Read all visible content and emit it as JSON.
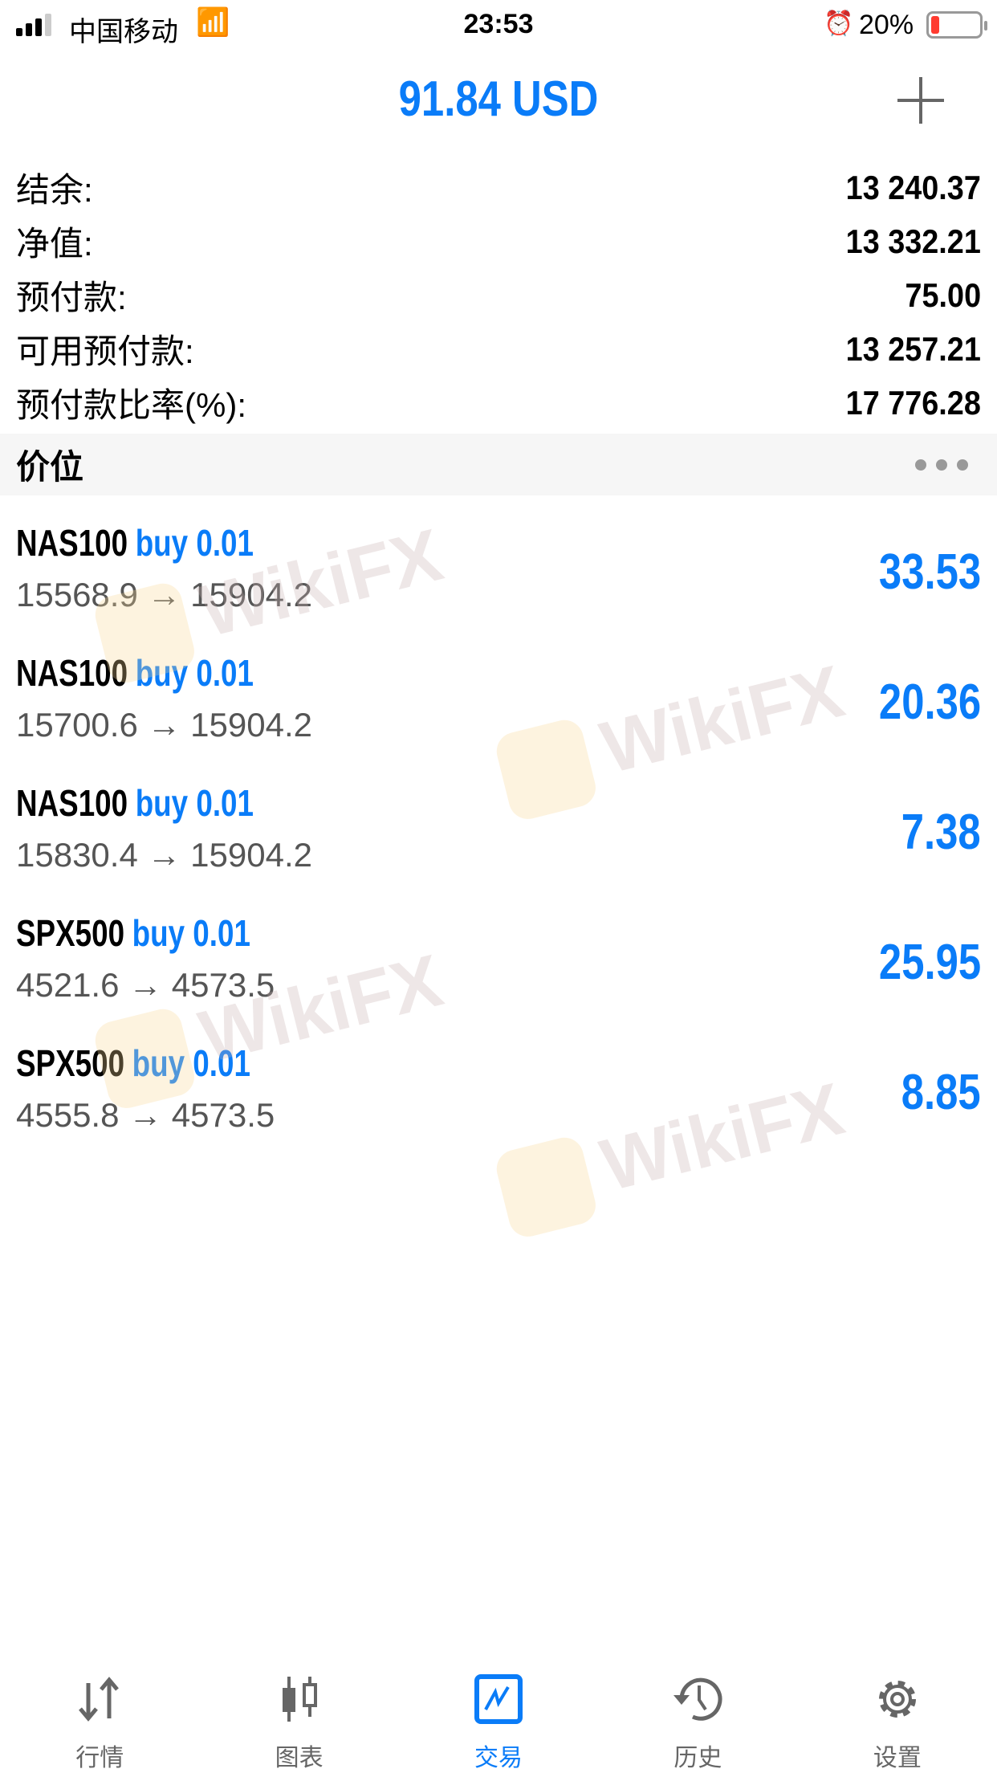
{
  "status_bar": {
    "carrier": "中国移动",
    "time": "23:53",
    "battery": "20%",
    "battery_level": 0.2
  },
  "header": {
    "title": "91.84 USD",
    "add_icon": "plus-icon"
  },
  "summary": [
    {
      "label": "结余:",
      "value": "13 240.37"
    },
    {
      "label": "净值:",
      "value": "13 332.21"
    },
    {
      "label": "预付款:",
      "value": "75.00"
    },
    {
      "label": "可用预付款:",
      "value": "13 257.21"
    },
    {
      "label": "预付款比率(%):",
      "value": "17 776.28"
    }
  ],
  "section": {
    "title": "价位",
    "menu_icon": "more-dots-icon"
  },
  "positions": [
    {
      "symbol": "NAS100",
      "side": "buy 0.01",
      "prices": "15568.9 → 15904.2",
      "profit": "33.53"
    },
    {
      "symbol": "NAS100",
      "side": "buy 0.01",
      "prices": "15700.6 → 15904.2",
      "profit": "20.36"
    },
    {
      "symbol": "NAS100",
      "side": "buy 0.01",
      "prices": "15830.4 → 15904.2",
      "profit": "7.38"
    },
    {
      "symbol": "SPX500",
      "side": "buy 0.01",
      "prices": "4521.6 → 4573.5",
      "profit": "25.95"
    },
    {
      "symbol": "SPX500",
      "side": "buy 0.01",
      "prices": "4555.8 → 4573.5",
      "profit": "8.85"
    }
  ],
  "watermark": "WikiFX",
  "tabs": [
    {
      "label": "行情",
      "icon": "quotes-arrows-icon"
    },
    {
      "label": "图表",
      "icon": "candlestick-chart-icon"
    },
    {
      "label": "交易",
      "icon": "trade-chart-icon",
      "active": true
    },
    {
      "label": "历史",
      "icon": "history-clock-icon"
    },
    {
      "label": "设置",
      "icon": "settings-gear-icon"
    }
  ],
  "colors": {
    "accent": "#0a7cf8",
    "inactive": "#666666"
  }
}
